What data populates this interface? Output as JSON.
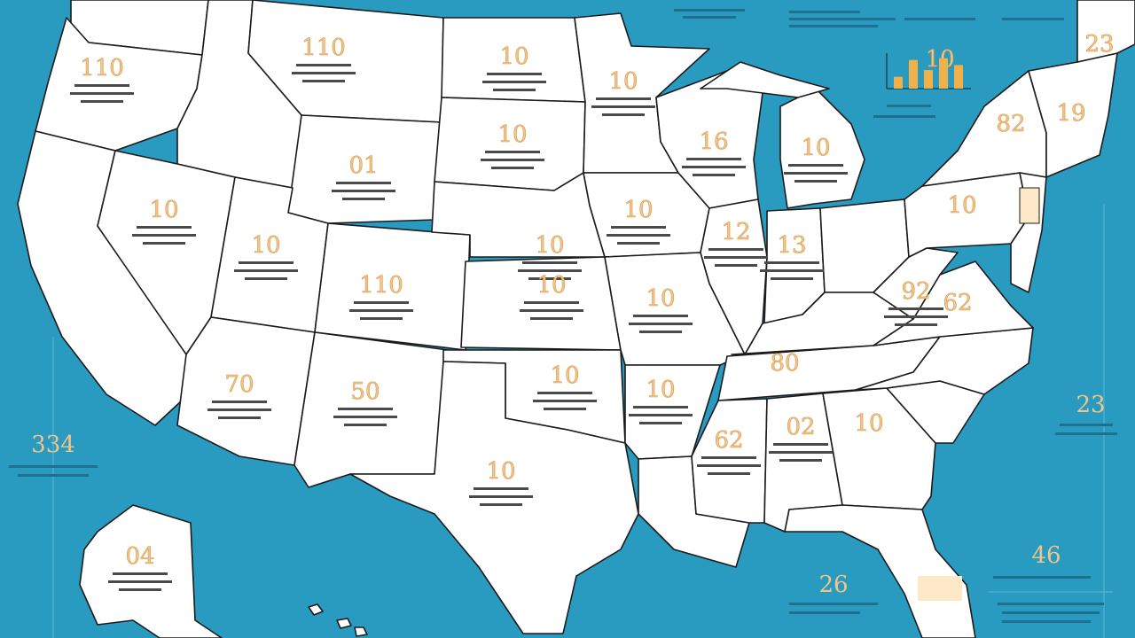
{
  "colors": {
    "ocean": "#2a9bc0",
    "land": "#ffffff",
    "border": "#1b1b1b",
    "label": "#f2c48a",
    "highlight": "#fde9c8"
  },
  "states": [
    {
      "id": "washington",
      "num": "",
      "name": ""
    },
    {
      "id": "oregon",
      "num": "110",
      "name": ""
    },
    {
      "id": "california",
      "num": "",
      "name": ""
    },
    {
      "id": "idaho",
      "num": "",
      "name": ""
    },
    {
      "id": "nevada",
      "num": "10",
      "name": ""
    },
    {
      "id": "montana",
      "num": "110",
      "name": ""
    },
    {
      "id": "wyoming",
      "num": "01",
      "name": ""
    },
    {
      "id": "utah",
      "num": "10",
      "name": ""
    },
    {
      "id": "colorado",
      "num": "110",
      "name": ""
    },
    {
      "id": "arizona",
      "num": "70",
      "name": ""
    },
    {
      "id": "new-mexico",
      "num": "50",
      "name": ""
    },
    {
      "id": "north-dakota",
      "num": "10",
      "name": ""
    },
    {
      "id": "south-dakota",
      "num": "10",
      "name": ""
    },
    {
      "id": "nebraska",
      "num": "10",
      "name": ""
    },
    {
      "id": "kansas",
      "num": "10",
      "name": ""
    },
    {
      "id": "oklahoma",
      "num": "10",
      "name": ""
    },
    {
      "id": "texas",
      "num": "10",
      "name": ""
    },
    {
      "id": "minnesota",
      "num": "10",
      "name": ""
    },
    {
      "id": "iowa",
      "num": "10",
      "name": ""
    },
    {
      "id": "missouri",
      "num": "10",
      "name": ""
    },
    {
      "id": "arkansas",
      "num": "10",
      "name": ""
    },
    {
      "id": "louisiana",
      "num": "",
      "name": ""
    },
    {
      "id": "wisconsin",
      "num": "16",
      "name": ""
    },
    {
      "id": "illinois",
      "num": "12",
      "name": ""
    },
    {
      "id": "michigan",
      "num": "10",
      "name": ""
    },
    {
      "id": "indiana",
      "num": "13",
      "name": ""
    },
    {
      "id": "ohio",
      "num": "",
      "name": ""
    },
    {
      "id": "kentucky",
      "num": "",
      "name": ""
    },
    {
      "id": "tennessee",
      "num": "",
      "name": ""
    },
    {
      "id": "mississippi",
      "num": "62",
      "name": ""
    },
    {
      "id": "alabama",
      "num": "02",
      "name": ""
    },
    {
      "id": "georgia",
      "num": "",
      "name": ""
    },
    {
      "id": "florida",
      "num": "",
      "name": ""
    },
    {
      "id": "south-carolina",
      "num": "",
      "name": ""
    },
    {
      "id": "north-carolina",
      "num": "",
      "name": ""
    },
    {
      "id": "virginia",
      "num": "",
      "name": ""
    },
    {
      "id": "west-virginia",
      "num": "92",
      "name": ""
    },
    {
      "id": "pennsylvania",
      "num": "",
      "name": ""
    },
    {
      "id": "new-york",
      "num": "",
      "name": ""
    },
    {
      "id": "maine",
      "num": "",
      "name": ""
    },
    {
      "id": "alaska",
      "num": "04",
      "name": ""
    }
  ],
  "side": {
    "left": "334",
    "right_mid": "23",
    "right_low": "46",
    "bottom_mid": "26",
    "top_right": "10",
    "ny_label": "82",
    "va_label": "62",
    "ky_label": "80",
    "me_label": "23",
    "vt_label": "19",
    "fl_label": "",
    "ga_label": "10",
    "pa_label": "10"
  },
  "mini_bars": [
    0.35,
    0.85,
    0.55,
    0.9,
    0.7
  ]
}
